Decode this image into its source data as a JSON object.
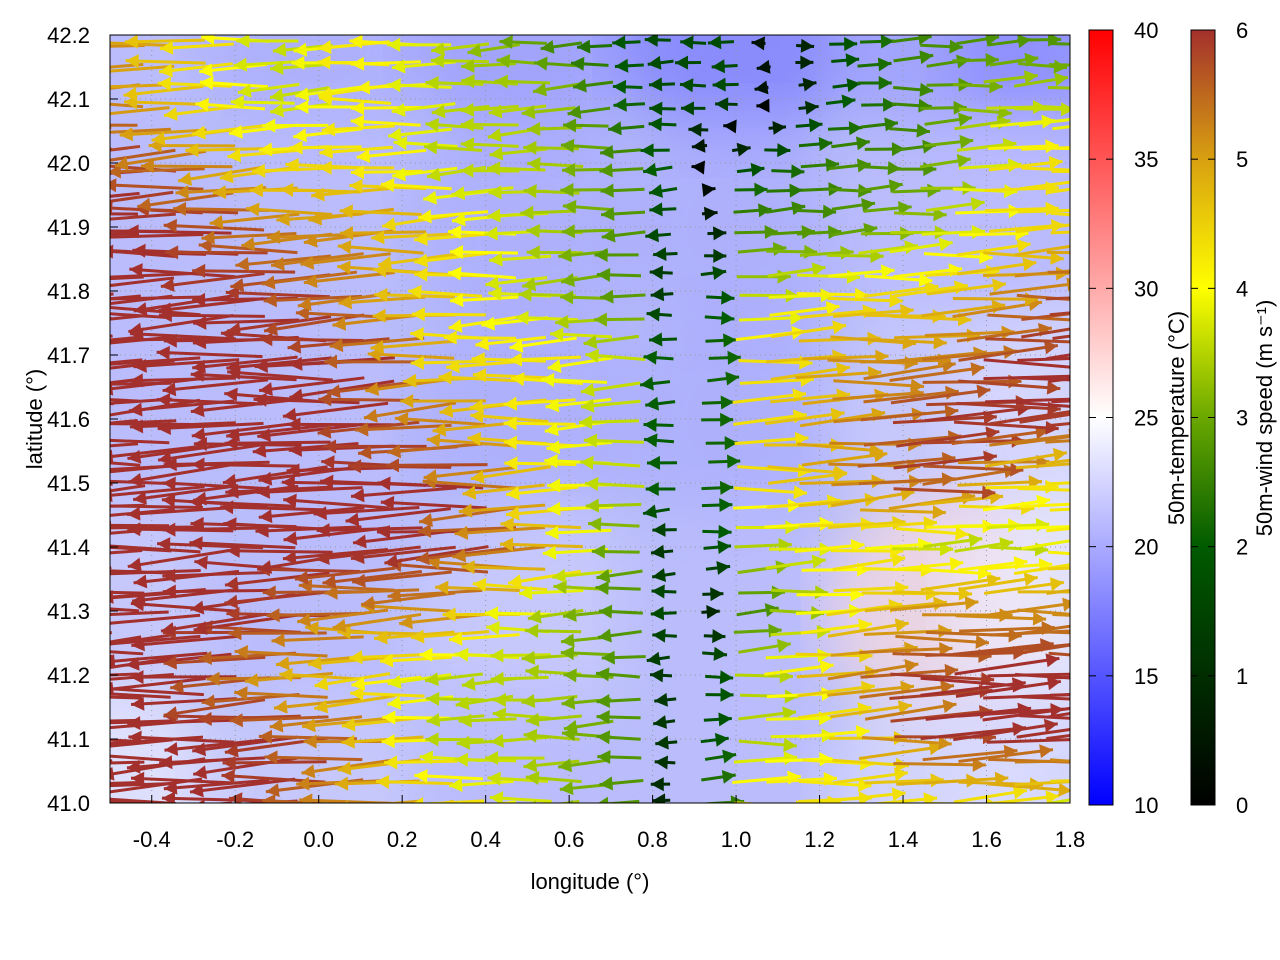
{
  "chart_data": {
    "type": "vector-field",
    "xlabel": "longitude (°)",
    "ylabel": "latitude (°)",
    "xlim": [
      -0.5,
      1.8
    ],
    "ylim": [
      41.0,
      42.2
    ],
    "xticks": [
      "-0.4",
      "-0.2",
      "0.0",
      "0.2",
      "0.4",
      "0.6",
      "0.8",
      "1.0",
      "1.2",
      "1.4",
      "1.6",
      "1.8"
    ],
    "yticks": [
      "41.0",
      "41.1",
      "41.2",
      "41.3",
      "41.4",
      "41.5",
      "41.6",
      "41.7",
      "41.8",
      "41.9",
      "42.0",
      "42.1",
      "42.2"
    ],
    "grid": true,
    "temperature_colorbar": {
      "label": "50m-temperature (°C)",
      "range": [
        10,
        40
      ],
      "ticks": [
        "10",
        "15",
        "20",
        "25",
        "30",
        "35",
        "40"
      ],
      "colors": [
        "#0000ff",
        "#ffffff",
        "#ff0000"
      ]
    },
    "wind_colorbar": {
      "label": "50m-wind speed (m s⁻¹)",
      "range": [
        0,
        6
      ],
      "ticks": [
        "0",
        "1",
        "2",
        "3",
        "4",
        "5",
        "6"
      ],
      "colors": [
        "#000000",
        "#005a00",
        "#6aa800",
        "#ffff00",
        "#d8a010",
        "#a3302c"
      ]
    },
    "wind_grid": {
      "note": "signed 50m wind speed (m/s); negative = westward",
      "lon": [
        -0.4,
        -0.2,
        0.0,
        0.2,
        0.4,
        0.6,
        0.8,
        1.0,
        1.2,
        1.4,
        1.6,
        1.8
      ],
      "lat": [
        42.2,
        42.1,
        42.0,
        41.9,
        41.8,
        41.7,
        41.6,
        41.5,
        41.4,
        41.3,
        41.2,
        41.1,
        41.0
      ],
      "speed": [
        [
          -5,
          -4,
          -3,
          -4,
          -3,
          -2,
          -1,
          -1,
          1,
          2,
          2,
          2
        ],
        [
          -5,
          -4,
          -3,
          -4,
          -3,
          -3,
          -1,
          -1,
          1,
          2,
          3,
          3
        ],
        [
          -6,
          -5,
          -4,
          -4,
          -3,
          -3,
          -2,
          1,
          2,
          2,
          4,
          4
        ],
        [
          -6,
          -6,
          -5,
          -5,
          -4,
          -3,
          -2,
          2,
          2,
          3,
          4,
          4
        ],
        [
          -6,
          -6,
          -6,
          -5,
          -4,
          -3,
          -2,
          3,
          4,
          4,
          5,
          6
        ],
        [
          -6,
          -6,
          -6,
          -6,
          -4,
          -4,
          -3,
          4,
          5,
          5,
          6,
          6
        ],
        [
          -6,
          -6,
          -6,
          -6,
          -5,
          -4,
          -3,
          4,
          5,
          6,
          6,
          6
        ],
        [
          -6,
          -6,
          -6,
          -6,
          -6,
          -4,
          -3,
          4,
          5,
          6,
          4,
          4
        ],
        [
          -6,
          -6,
          -6,
          -6,
          -6,
          -5,
          -2,
          3,
          4,
          3,
          3,
          4
        ],
        [
          -6,
          -6,
          -6,
          -5,
          -5,
          -3,
          -2,
          2,
          4,
          5,
          5,
          5
        ],
        [
          -6,
          -6,
          -5,
          -4,
          -3,
          -3,
          -2,
          3,
          5,
          6,
          6,
          6
        ],
        [
          -6,
          -6,
          -6,
          -5,
          -3,
          -3,
          -2,
          3,
          4,
          6,
          6,
          6
        ],
        [
          -6,
          -6,
          -6,
          -5,
          -4,
          -3,
          -2,
          4,
          4,
          4,
          4,
          3
        ]
      ]
    },
    "temperature_grid": {
      "lon": [
        -0.5,
        0.0,
        0.5,
        1.0,
        1.5,
        1.8
      ],
      "lat": [
        42.2,
        41.9,
        41.6,
        41.3,
        41.0
      ],
      "values": [
        [
          21,
          20,
          19,
          17,
          19,
          18
        ],
        [
          21,
          21,
          20,
          20,
          21,
          21
        ],
        [
          21,
          21,
          20,
          20,
          22,
          23
        ],
        [
          22,
          21,
          22,
          21,
          27,
          24
        ],
        [
          24,
          22,
          21,
          21,
          23,
          23
        ]
      ]
    }
  }
}
